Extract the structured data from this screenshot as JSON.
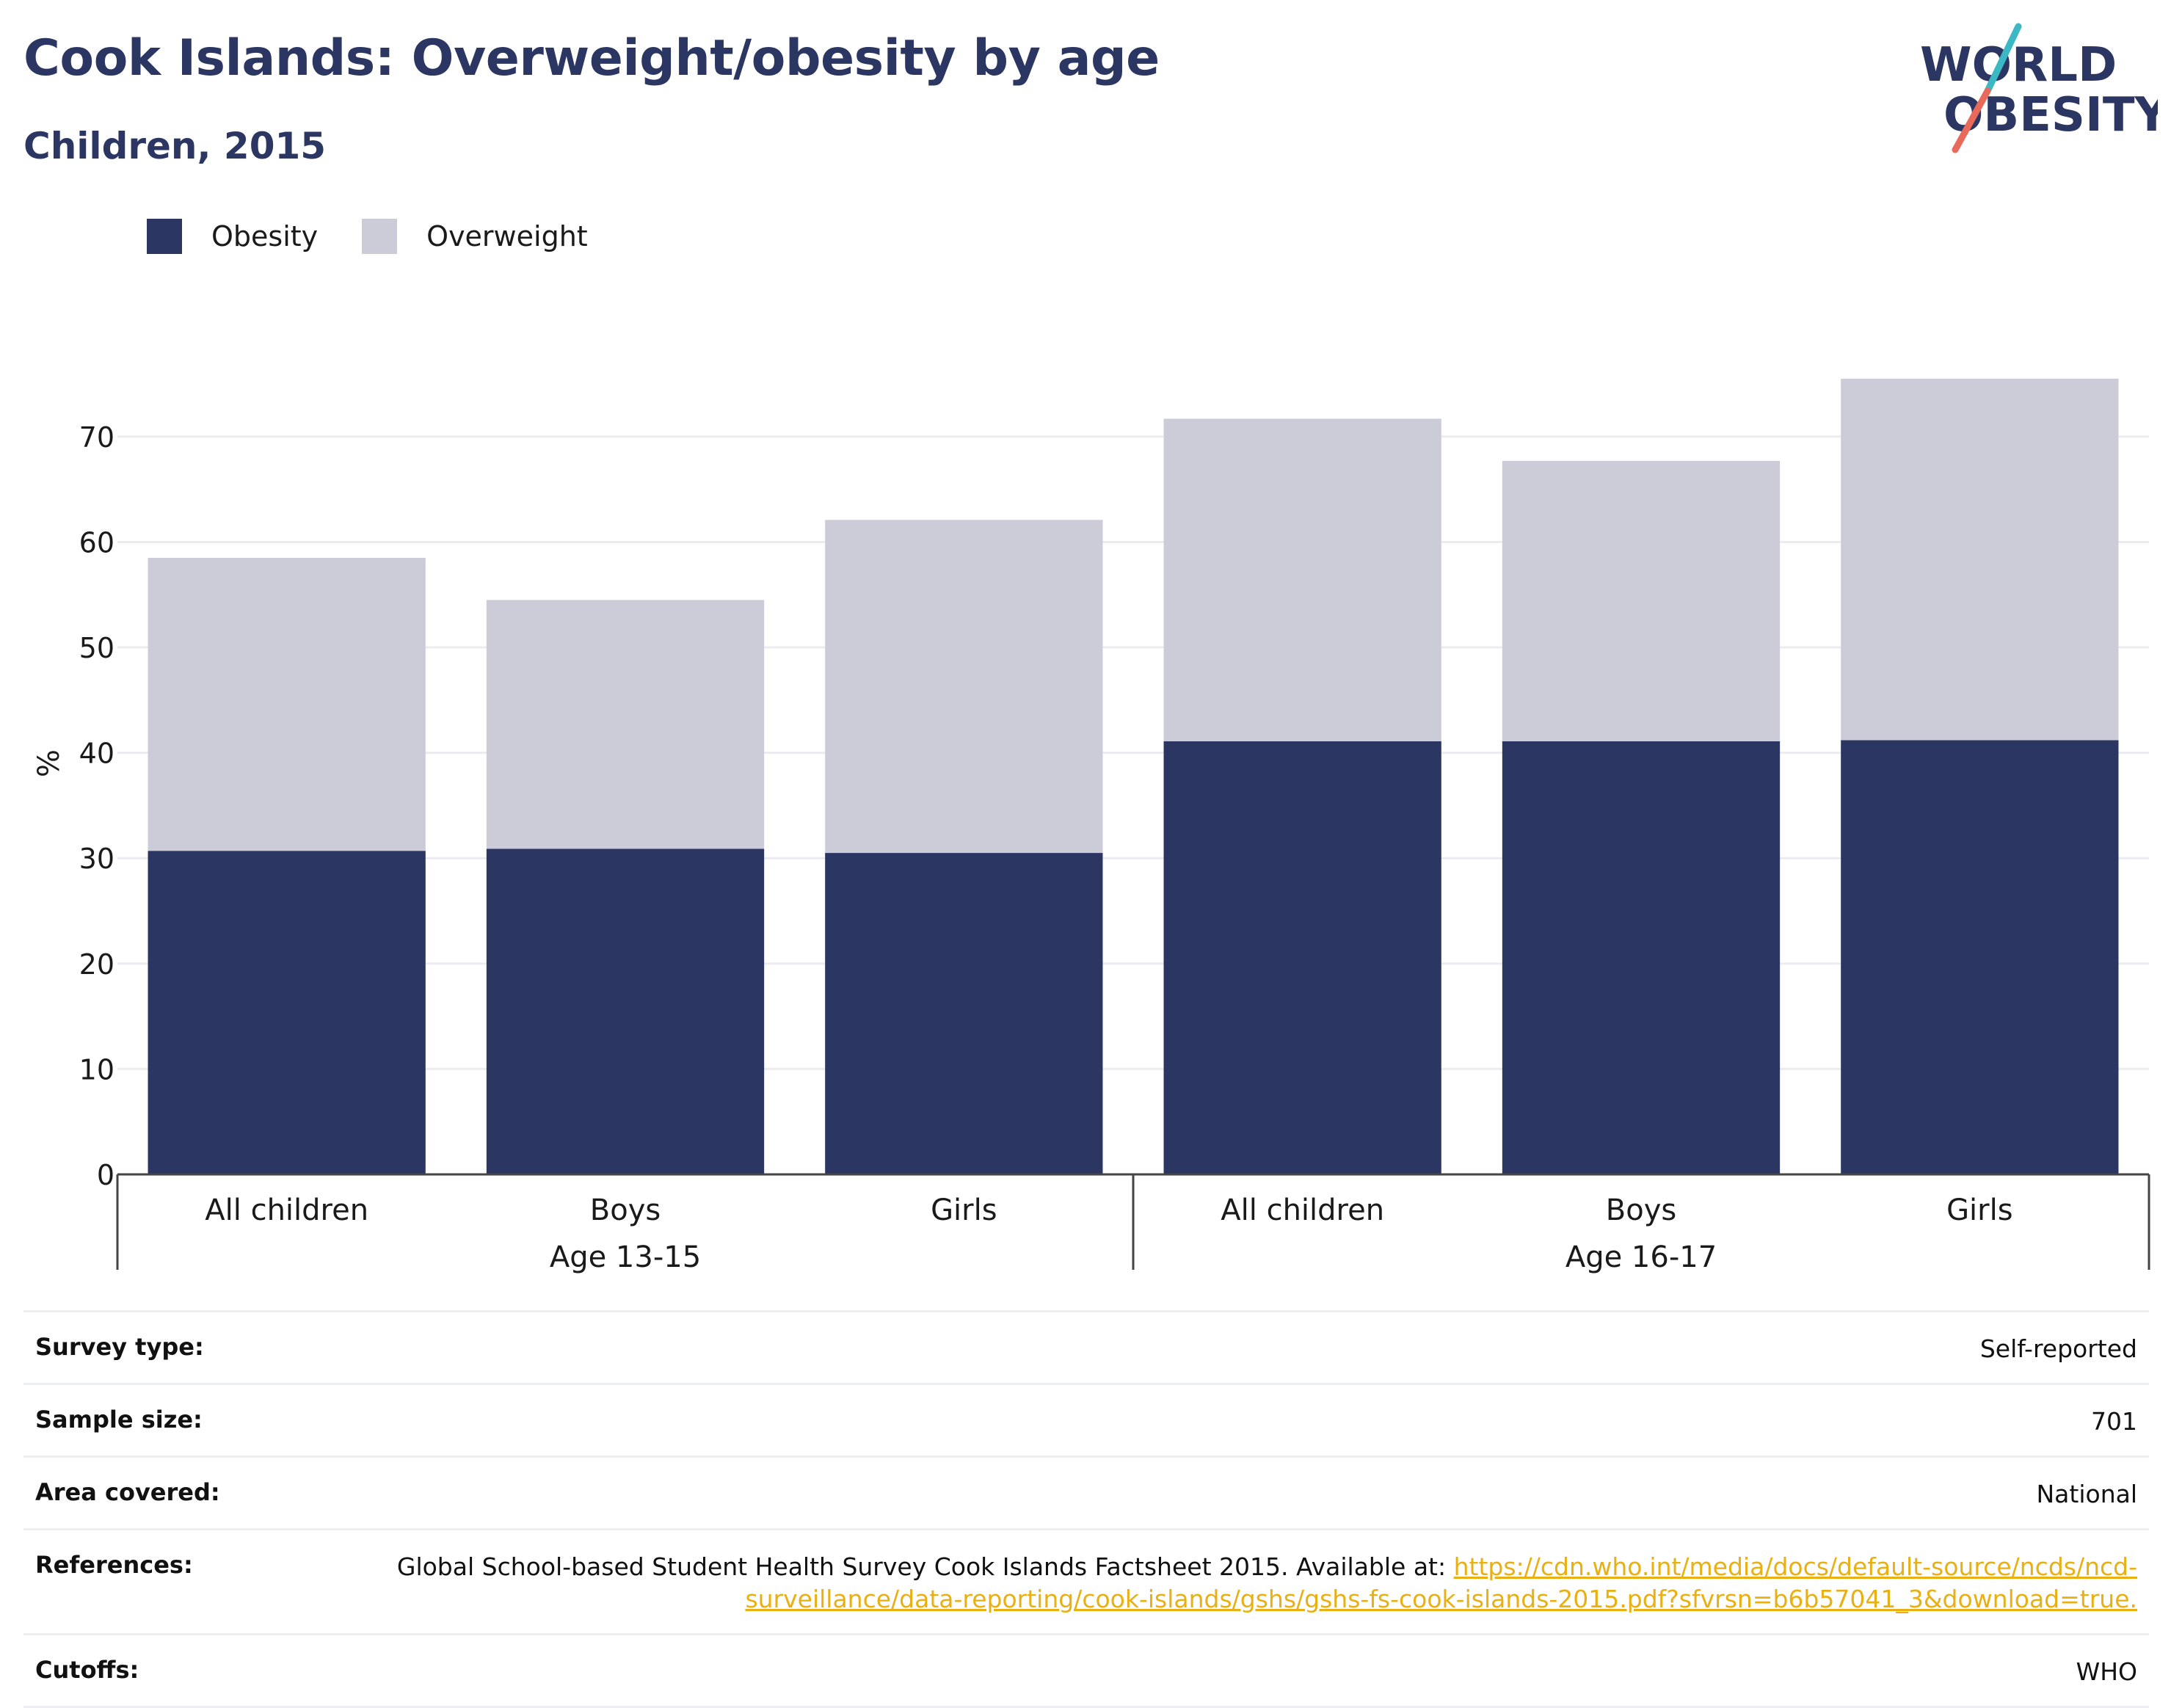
{
  "header": {
    "title": "Cook Islands: Overweight/obesity by age",
    "subtitle": "Children, 2015"
  },
  "logo": {
    "line1": "WORLD",
    "line2": "OBESITY",
    "colors": {
      "text": "#2b3663",
      "slash_teal": "#3bb8c3",
      "slash_coral": "#e86a5a"
    }
  },
  "legend": [
    {
      "label": "Obesity",
      "color": "#2b3663"
    },
    {
      "label": "Overweight",
      "color": "#cbccd8"
    }
  ],
  "chart_data": {
    "type": "bar",
    "stacked": true,
    "ylabel": "%",
    "ylim": [
      0,
      78
    ],
    "yticks": [
      0,
      10,
      20,
      30,
      40,
      50,
      60,
      70
    ],
    "grid": true,
    "legend_position": "top-left",
    "categories": [
      "All children",
      "Boys",
      "Girls",
      "All children",
      "Boys",
      "Girls"
    ],
    "groups": [
      {
        "label": "Age 13-15",
        "categories": [
          "All children",
          "Boys",
          "Girls"
        ]
      },
      {
        "label": "Age 16-17",
        "categories": [
          "All children",
          "Boys",
          "Girls"
        ]
      }
    ],
    "series": [
      {
        "name": "Obesity",
        "color": "#2b3663",
        "values": [
          30.7,
          30.9,
          30.5,
          41.1,
          41.1,
          41.2
        ]
      },
      {
        "name": "Overweight",
        "color": "#cbccd8",
        "values": [
          27.8,
          23.6,
          31.6,
          30.6,
          26.6,
          34.3
        ]
      }
    ]
  },
  "meta": {
    "survey_type": {
      "label": "Survey type:",
      "value": "Self-reported"
    },
    "sample_size": {
      "label": "Sample size:",
      "value": "701"
    },
    "area_covered": {
      "label": "Area covered:",
      "value": "National"
    },
    "references": {
      "label": "References:",
      "text": "Global School-based Student Health Survey Cook Islands Factsheet 2015. Available at: ",
      "link": "https://cdn.who.int/media/docs/default-source/ncds/ncd-surveillance/data-reporting/cook-islands/gshs/gshs-fs-cook-islands-2015.pdf?sfvrsn=b6b57041_3&download=true."
    },
    "cutoffs": {
      "label": "Cutoffs:",
      "value": "WHO"
    }
  }
}
